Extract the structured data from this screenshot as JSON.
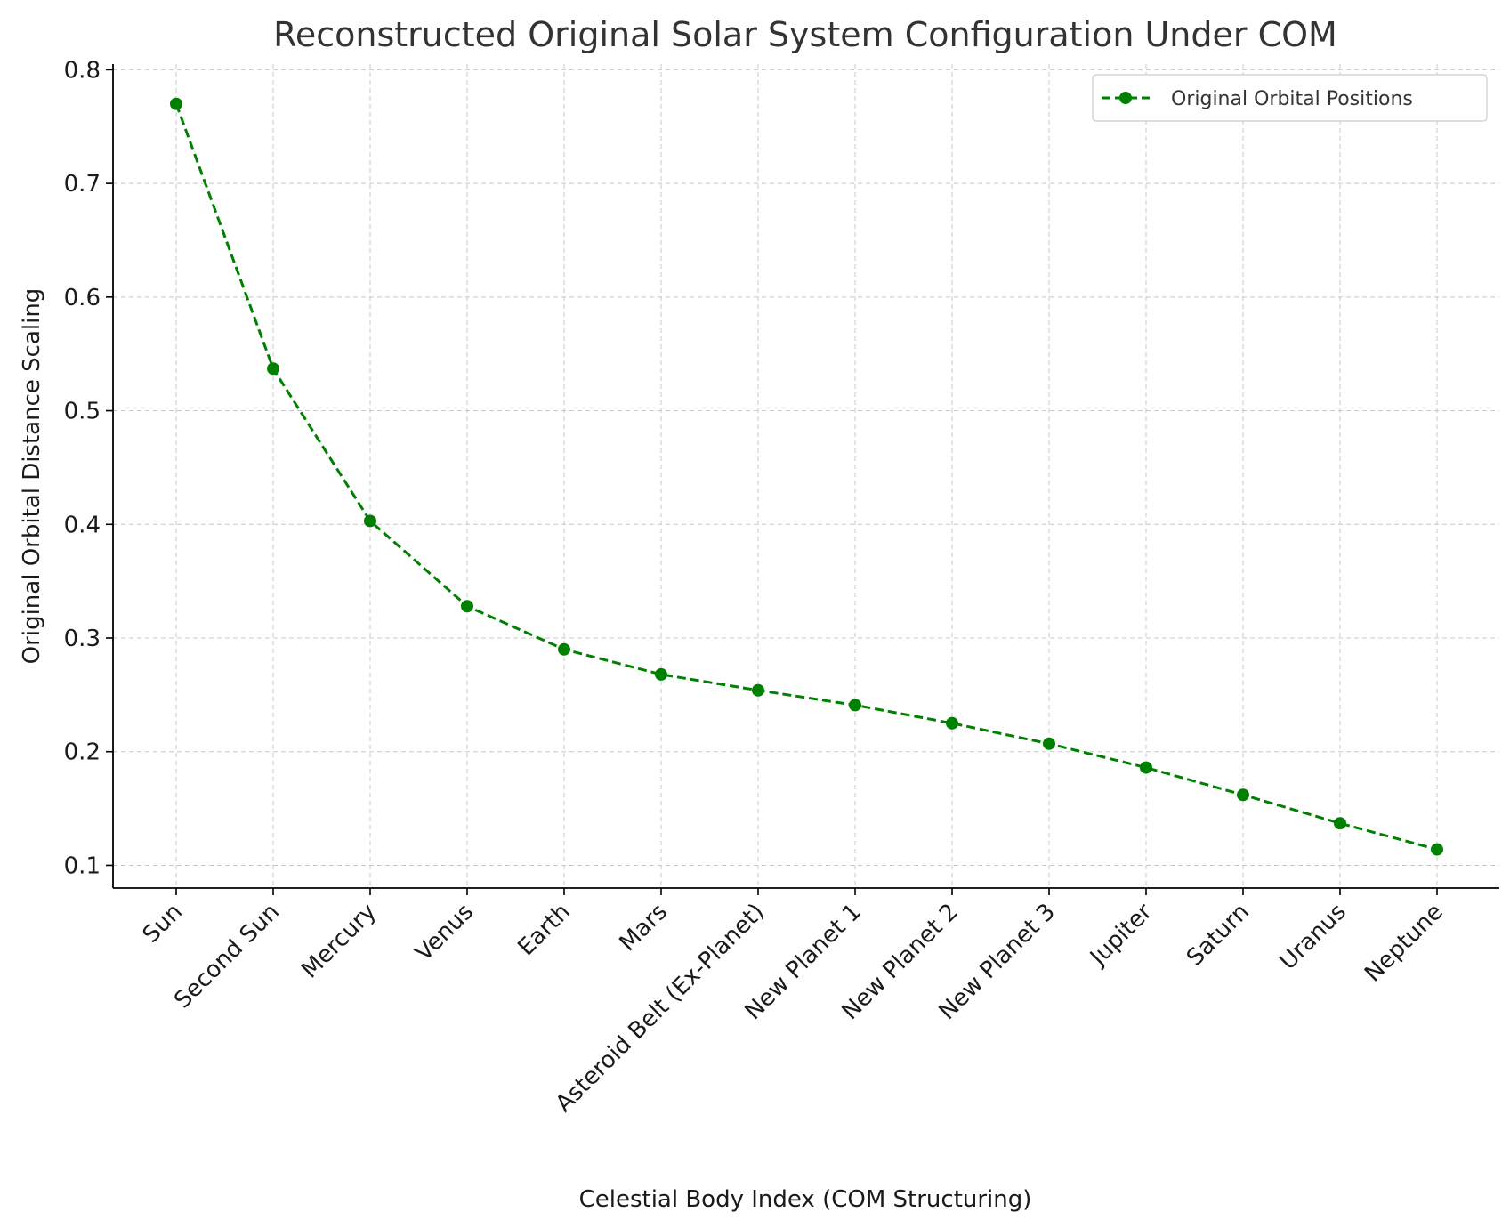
{
  "chart_data": {
    "type": "line",
    "title": "Reconstructed Original Solar System Configuration Under COM",
    "xlabel": "Celestial Body Index (COM Structuring)",
    "ylabel": "Original Orbital Distance Scaling",
    "categories": [
      "Sun",
      "Second Sun",
      "Mercury",
      "Venus",
      "Earth",
      "Mars",
      "Asteroid Belt (Ex-Planet)",
      "New Planet 1",
      "New Planet 2",
      "New Planet 3",
      "Jupiter",
      "Saturn",
      "Uranus",
      "Neptune"
    ],
    "series": [
      {
        "name": "Original Orbital Positions",
        "values": [
          0.77,
          0.537,
          0.403,
          0.328,
          0.29,
          0.268,
          0.254,
          0.241,
          0.225,
          0.207,
          0.186,
          0.162,
          0.137,
          0.114
        ],
        "color": "#008000",
        "line_style": "dashed",
        "marker": "circle"
      }
    ],
    "ylim": [
      0.08,
      0.805
    ],
    "yticks": [
      0.1,
      0.2,
      0.3,
      0.4,
      0.5,
      0.6,
      0.7,
      0.8
    ],
    "ytick_labels": [
      "0.1",
      "0.2",
      "0.3",
      "0.4",
      "0.5",
      "0.6",
      "0.7",
      "0.8"
    ],
    "grid": true,
    "legend_position": "top-right"
  }
}
